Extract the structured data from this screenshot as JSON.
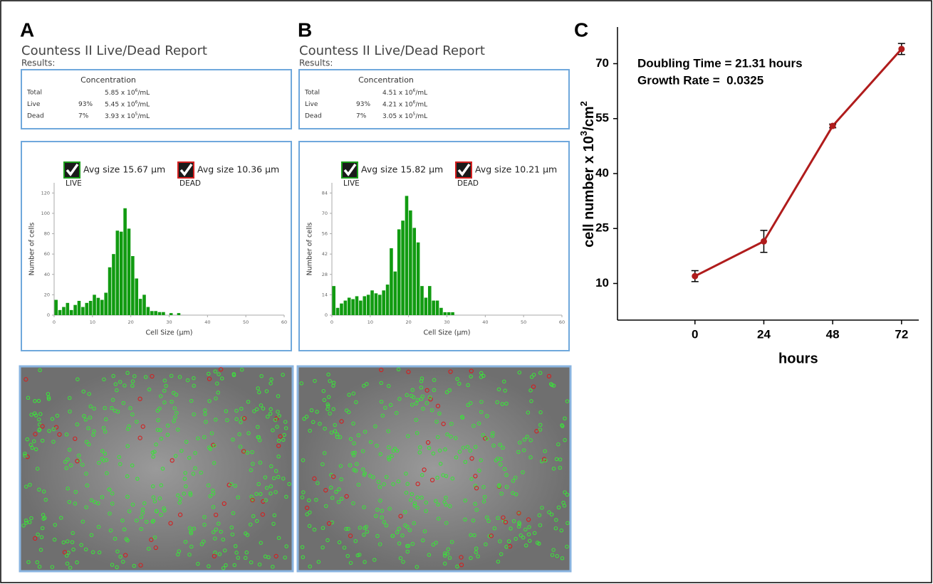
{
  "panels": {
    "a": "A",
    "b": "B",
    "c": "C"
  },
  "reports": [
    {
      "title": "Countess II Live/Dead Report",
      "results_label": "Results:",
      "column_header": "Concentration",
      "rows": [
        {
          "label": "Total",
          "base": "5.85 x 10",
          "exponent": "6",
          "unit": "/mL"
        },
        {
          "label": "Live",
          "percent": "93%",
          "base": "5.45 x 10",
          "exponent": "6",
          "unit": "/mL"
        },
        {
          "label": "Dead",
          "percent": "7%",
          "base": "3.93 x 10",
          "exponent": "5",
          "unit": "/mL"
        }
      ]
    },
    {
      "title": "Countess II Live/Dead Report",
      "results_label": "Results:",
      "column_header": "Concentration",
      "rows": [
        {
          "label": "Total",
          "base": "4.51 x 10",
          "exponent": "6",
          "unit": "/mL"
        },
        {
          "label": "Live",
          "percent": "93%",
          "base": "4.21 x 10",
          "exponent": "6",
          "unit": "/mL"
        },
        {
          "label": "Dead",
          "percent": "7%",
          "base": "3.05 x 10",
          "exponent": "5",
          "unit": "/mL"
        }
      ]
    }
  ],
  "chart_data": [
    {
      "type": "histogram",
      "color": "#119b11",
      "legend_items": [
        {
          "text": "Avg size 15.67 µm",
          "name": "LIVE",
          "color": "#1a9e1a"
        },
        {
          "text": "Avg size 10.36 µm",
          "name": "DEAD",
          "color": "#d42020"
        }
      ],
      "xlabel": "Cell Size (µm)",
      "ylabel": "Number of cells",
      "bins": [
        0,
        1,
        2,
        3,
        4,
        5,
        6,
        7,
        8,
        9,
        10,
        11,
        12,
        13,
        14,
        15,
        16,
        17,
        18,
        19,
        20,
        21,
        22,
        23,
        24,
        25,
        26,
        27,
        28,
        29,
        30,
        31,
        32,
        33
      ],
      "counts": [
        15,
        5,
        8,
        12,
        5,
        10,
        14,
        8,
        12,
        14,
        20,
        17,
        15,
        22,
        47,
        60,
        83,
        82,
        105,
        85,
        58,
        36,
        16,
        20,
        8,
        4,
        4,
        3,
        3,
        0,
        2,
        0,
        2
      ],
      "xlim": [
        0,
        60
      ],
      "xticks": [
        0,
        10,
        20,
        30,
        40,
        50,
        60
      ],
      "ylim": [
        0,
        130
      ],
      "yticks": [
        0,
        20,
        40,
        60,
        80,
        100,
        120
      ]
    },
    {
      "type": "histogram",
      "color": "#119b11",
      "legend_items": [
        {
          "text": "Avg size 15.82 µm",
          "name": "LIVE",
          "color": "#1a9e1a"
        },
        {
          "text": "Avg size 10.21 µm",
          "name": "DEAD",
          "color": "#d42020"
        }
      ],
      "xlabel": "Cell Size (µm)",
      "ylabel": "Number of cells",
      "bins": [
        0,
        1,
        2,
        3,
        4,
        5,
        6,
        7,
        8,
        9,
        10,
        11,
        12,
        13,
        14,
        15,
        16,
        17,
        18,
        19,
        20,
        21,
        22,
        23,
        24,
        25,
        26,
        27,
        28,
        29,
        30,
        31,
        32,
        33
      ],
      "counts": [
        20,
        5,
        8,
        10,
        12,
        11,
        13,
        10,
        13,
        14,
        17,
        15,
        14,
        17,
        21,
        46,
        30,
        59,
        65,
        82,
        72,
        60,
        50,
        20,
        12,
        20,
        10,
        10,
        5,
        2,
        2,
        2,
        0
      ],
      "xlim": [
        0,
        60
      ],
      "xticks": [
        0,
        10,
        20,
        30,
        40,
        50,
        60
      ],
      "ylim": [
        0,
        91
      ],
      "yticks": [
        0,
        14,
        28,
        42,
        56,
        70,
        84
      ]
    },
    {
      "type": "line",
      "color": "#b01c1c",
      "annotations": [
        "Doubling Time = 21.31 hours",
        "Growth Rate =  0.0325"
      ],
      "xlabel": "hours",
      "ylabel": [
        "cell number x 10",
        "3",
        "/cm",
        "2"
      ],
      "x": [
        0,
        24,
        48,
        72
      ],
      "values": [
        12,
        21.5,
        53,
        74
      ],
      "errors": [
        1.5,
        3,
        0.5,
        1.5
      ],
      "xlim": [
        -27,
        78
      ],
      "xticks": [
        0,
        24,
        48,
        72
      ],
      "ylim": [
        0,
        80
      ],
      "yticks": [
        10,
        25,
        40,
        55,
        70
      ]
    }
  ]
}
